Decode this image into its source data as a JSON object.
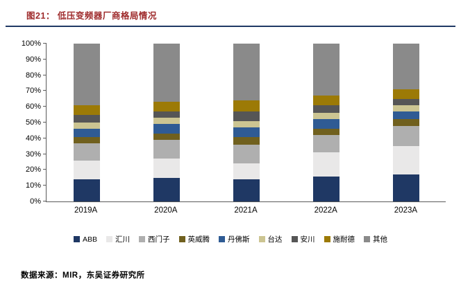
{
  "header": {
    "title": "图21： 低压变频器厂商格局情况"
  },
  "footer": {
    "source": "数据来源：MIR，东吴证券研究所"
  },
  "colors": {
    "title_text": "#9E2A2B",
    "rule": "#1F3864",
    "axis": "#595959"
  },
  "chart_data": {
    "type": "bar",
    "stacked": true,
    "percent": true,
    "title": "低压变频器厂商格局情况",
    "xlabel": "",
    "ylabel": "",
    "ylim": [
      0,
      100
    ],
    "ytick_step": 10,
    "ytick_suffix": "%",
    "grid": false,
    "legend_position": "bottom",
    "categories": [
      "2019A",
      "2020A",
      "2021A",
      "2022A",
      "2023A"
    ],
    "series": [
      {
        "name": "ABB",
        "color": "#1F3864",
        "values": [
          14,
          15,
          14,
          16,
          17
        ]
      },
      {
        "name": "汇川",
        "color": "#E9E8E8",
        "values": [
          12,
          12,
          10,
          15,
          18
        ]
      },
      {
        "name": "西门子",
        "color": "#AFAFAF",
        "values": [
          11,
          12,
          12,
          11,
          13
        ]
      },
      {
        "name": "英威腾",
        "color": "#70601E",
        "values": [
          4,
          4,
          5,
          4,
          4
        ]
      },
      {
        "name": "丹佛斯",
        "color": "#2F5B94",
        "values": [
          5,
          6,
          6,
          6,
          5
        ]
      },
      {
        "name": "台达",
        "color": "#CCC592",
        "values": [
          4,
          4,
          4,
          4,
          4
        ]
      },
      {
        "name": "安川",
        "color": "#565656",
        "values": [
          5,
          4,
          6,
          5,
          4
        ]
      },
      {
        "name": "施耐德",
        "color": "#9C7A06",
        "values": [
          6,
          6,
          7,
          6,
          6
        ]
      },
      {
        "name": "其他",
        "color": "#8A8A8A",
        "values": [
          39,
          37,
          36,
          33,
          29
        ]
      }
    ]
  }
}
